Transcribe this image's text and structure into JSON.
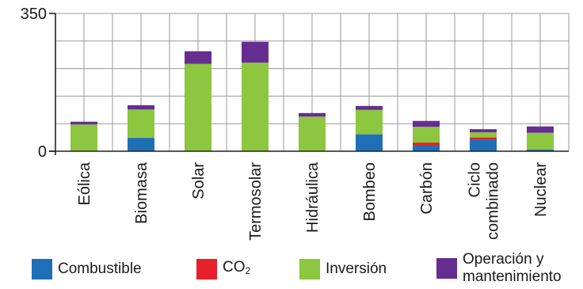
{
  "chart_data": {
    "type": "bar",
    "stacked": true,
    "categories": [
      "Eólica",
      "Biomasa",
      "Solar",
      "Termosolar",
      "Hidráulica",
      "Bombeo",
      "Carbón",
      "Ciclo combinado",
      "Nuclear"
    ],
    "category_lines": [
      [
        "Eólica"
      ],
      [
        "Biomasa"
      ],
      [
        "Solar"
      ],
      [
        "Termosolar"
      ],
      [
        "Hidráulica"
      ],
      [
        "Bombeo"
      ],
      [
        "Carbón"
      ],
      [
        "Ciclo",
        "combinado"
      ],
      [
        "Nuclear"
      ]
    ],
    "series": [
      {
        "name": "Combustible",
        "color": "#1f6fb6",
        "values": [
          0,
          34,
          0,
          0,
          0,
          43,
          14,
          30,
          4
        ]
      },
      {
        "name": "CO2",
        "color": "#e8202a",
        "values": [
          0,
          0,
          0,
          0,
          0,
          0,
          8,
          5,
          0
        ]
      },
      {
        "name": "Inversión",
        "color": "#8dc63f",
        "values": [
          68,
          72,
          222,
          225,
          88,
          62,
          40,
          13,
          43
        ]
      },
      {
        "name": "Operación y mantenimiento",
        "color": "#662d91",
        "values": [
          7,
          11,
          32,
          53,
          9,
          10,
          15,
          8,
          16
        ]
      }
    ],
    "yticks": [
      0,
      350
    ],
    "ylim": [
      0,
      350
    ],
    "grid": true,
    "legend_position": "bottom"
  },
  "legend": [
    {
      "key": "combustible",
      "color": "#1f6fb6",
      "lines": [
        "Combustible"
      ]
    },
    {
      "key": "co2",
      "color": "#e8202a",
      "label_main": "CO",
      "label_sub": "2"
    },
    {
      "key": "inversion",
      "color": "#8dc63f",
      "lines": [
        "Inversión"
      ]
    },
    {
      "key": "operacion",
      "color": "#662d91",
      "lines": [
        "Operación y",
        "mantenimiento"
      ]
    }
  ]
}
